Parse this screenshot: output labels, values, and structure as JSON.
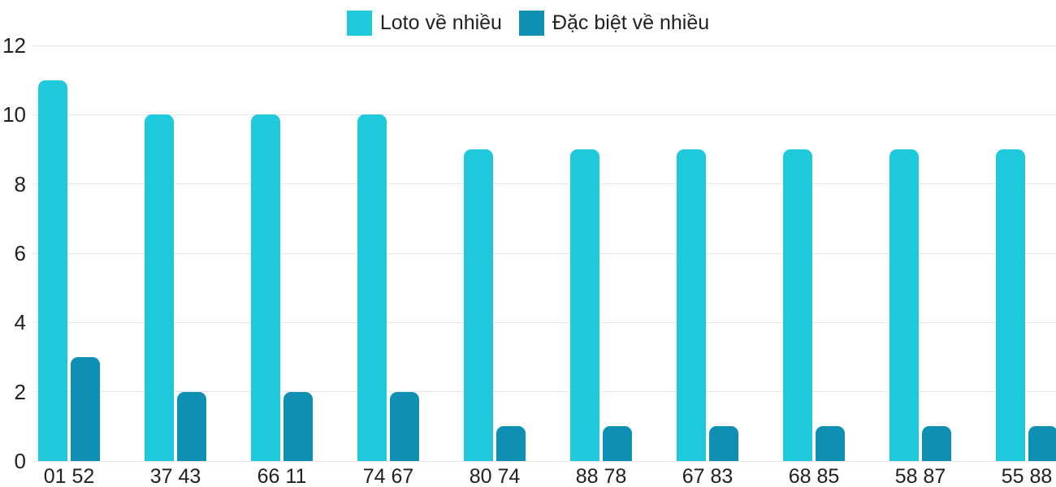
{
  "chart_data": {
    "type": "bar",
    "title": "",
    "xlabel": "",
    "ylabel": "",
    "categories": [
      "01 52",
      "37 43",
      "66 11",
      "74 67",
      "80 74",
      "88 78",
      "67 83",
      "68 85",
      "58 87",
      "55 88"
    ],
    "series": [
      {
        "name": "Loto về nhiều",
        "color": "#1ec9dc",
        "values": [
          11,
          10,
          10,
          10,
          9,
          9,
          9,
          9,
          9,
          9
        ]
      },
      {
        "name": "Đặc biệt về nhiều",
        "color": "#0e8fb4",
        "values": [
          3,
          2,
          2,
          2,
          1,
          1,
          1,
          1,
          1,
          1
        ]
      }
    ],
    "yticks": [
      0,
      2,
      4,
      6,
      8,
      10,
      12
    ],
    "ylim": [
      0,
      12
    ],
    "grid": true,
    "legend_position": "top-center",
    "colors": {
      "background": "#ffffff",
      "gridline": "#e6e6e6",
      "axis_text": "#212121"
    }
  }
}
